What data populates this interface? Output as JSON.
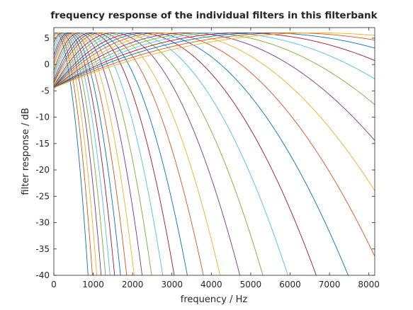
{
  "chart_data": {
    "type": "line",
    "title": "frequency response of the individual filters in this filterbank",
    "xlabel": "frequency / Hz",
    "ylabel": "filter response / dB",
    "xlim": [
      0,
      8150
    ],
    "ylim": [
      -40,
      7
    ],
    "xticks": [
      0,
      1000,
      2000,
      3000,
      4000,
      5000,
      6000,
      7000,
      8000
    ],
    "yticks": [
      -40,
      -35,
      -30,
      -25,
      -20,
      -15,
      -10,
      -5,
      0,
      5
    ],
    "grid": false,
    "peak_gain_db": 6,
    "series_colors": [
      "#0072bd",
      "#d95319",
      "#edb120",
      "#7e2f8e",
      "#77ac30",
      "#4dbeee",
      "#a2142f"
    ],
    "filters": [
      {
        "center_hz": 50,
        "sigma_hz": 27
      },
      {
        "center_hz": 100,
        "sigma_hz": 29
      },
      {
        "center_hz": 150,
        "sigma_hz": 31
      },
      {
        "center_hz": 200,
        "sigma_hz": 33
      },
      {
        "center_hz": 250,
        "sigma_hz": 35
      },
      {
        "center_hz": 305,
        "sigma_hz": 37
      },
      {
        "center_hz": 360,
        "sigma_hz": 39
      },
      {
        "center_hz": 420,
        "sigma_hz": 42
      },
      {
        "center_hz": 485,
        "sigma_hz": 45
      },
      {
        "center_hz": 555,
        "sigma_hz": 49
      },
      {
        "center_hz": 635,
        "sigma_hz": 53
      },
      {
        "center_hz": 725,
        "sigma_hz": 58
      },
      {
        "center_hz": 825,
        "sigma_hz": 64
      },
      {
        "center_hz": 935,
        "sigma_hz": 70
      },
      {
        "center_hz": 1055,
        "sigma_hz": 77
      },
      {
        "center_hz": 1190,
        "sigma_hz": 86
      },
      {
        "center_hz": 1340,
        "sigma_hz": 95
      },
      {
        "center_hz": 1510,
        "sigma_hz": 106
      },
      {
        "center_hz": 1700,
        "sigma_hz": 119
      },
      {
        "center_hz": 1910,
        "sigma_hz": 133
      },
      {
        "center_hz": 2145,
        "sigma_hz": 149
      },
      {
        "center_hz": 2410,
        "sigma_hz": 167
      },
      {
        "center_hz": 2705,
        "sigma_hz": 187
      },
      {
        "center_hz": 3035,
        "sigma_hz": 209
      },
      {
        "center_hz": 3400,
        "sigma_hz": 235
      },
      {
        "center_hz": 3810,
        "sigma_hz": 263
      },
      {
        "center_hz": 4265,
        "sigma_hz": 294
      },
      {
        "center_hz": 4770,
        "sigma_hz": 330
      },
      {
        "center_hz": 5340,
        "sigma_hz": 370
      },
      {
        "center_hz": 5985,
        "sigma_hz": 414
      },
      {
        "center_hz": 6700,
        "sigma_hz": 464
      }
    ]
  }
}
